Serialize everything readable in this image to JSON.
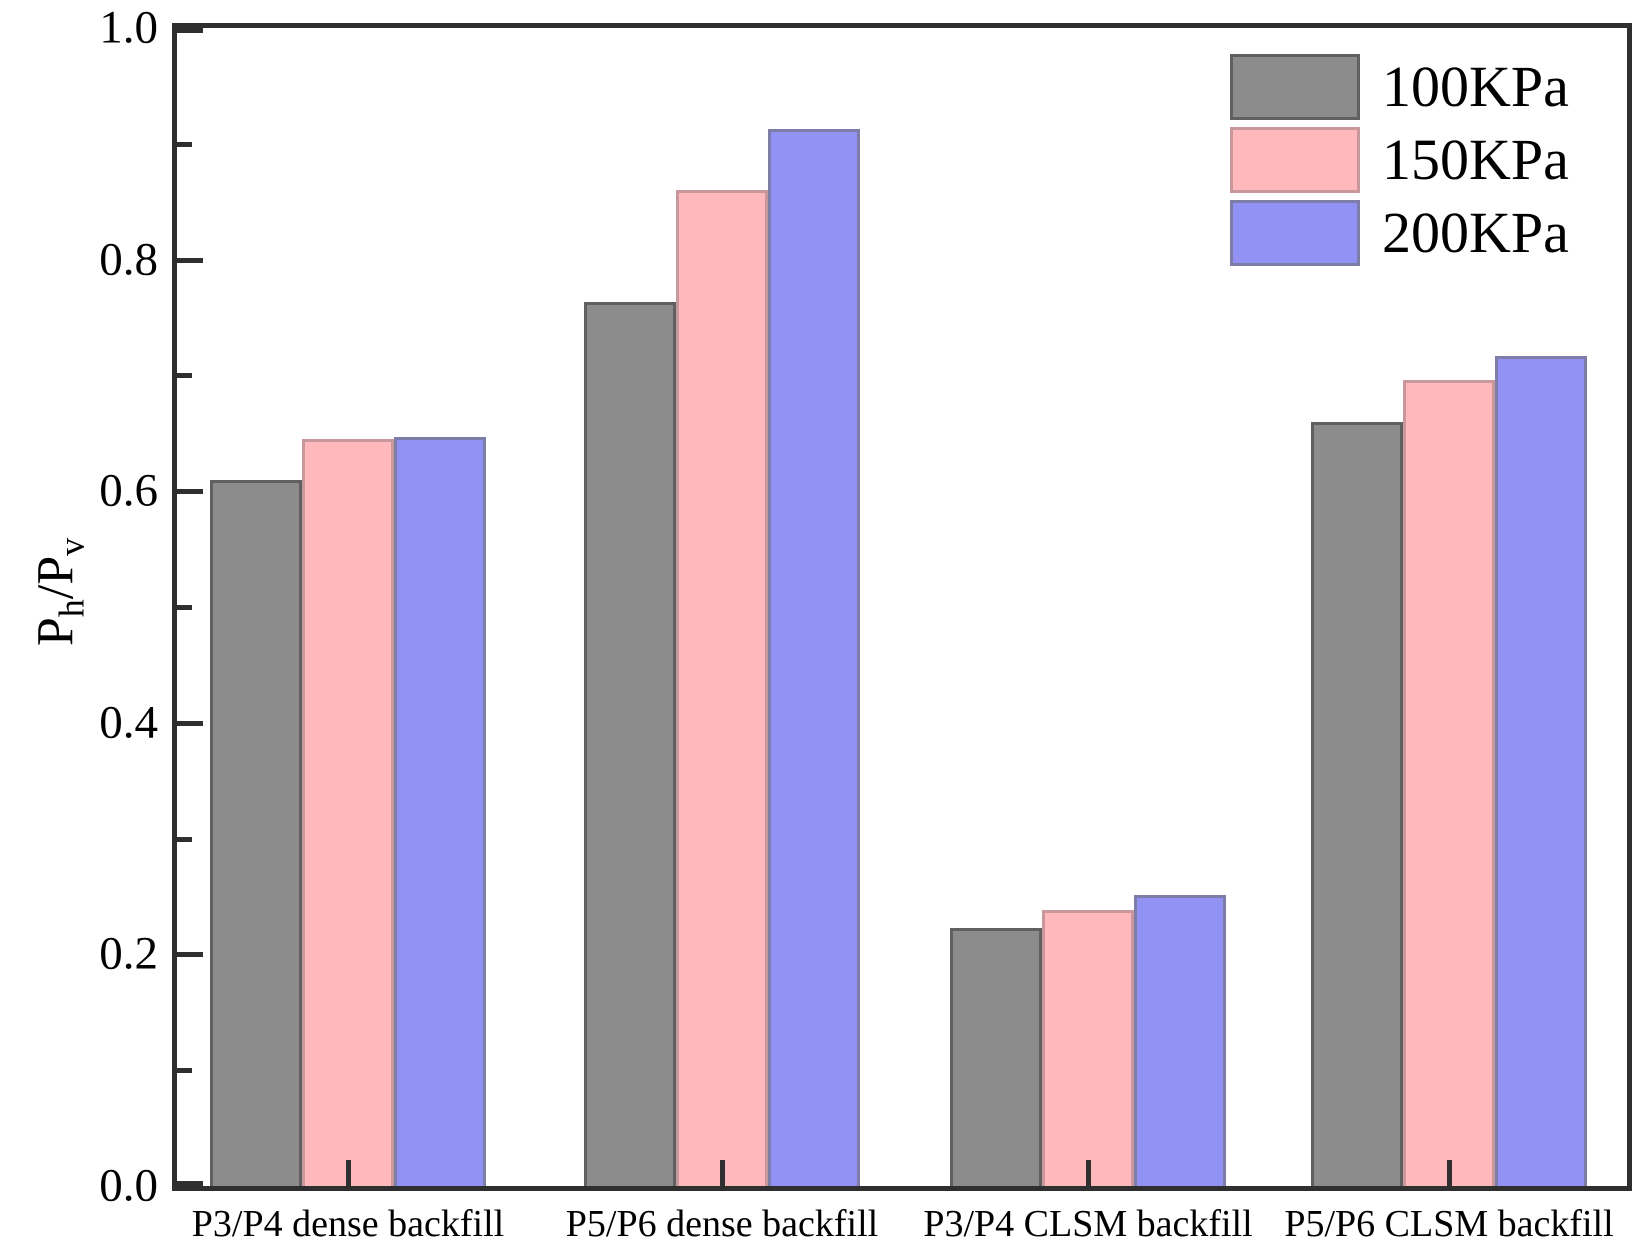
{
  "chart_data": {
    "type": "bar",
    "title": "",
    "ylabel": {
      "numerator": "P",
      "numerator_sub": "h",
      "separator": "/",
      "denominator": "P",
      "denominator_sub": "v"
    },
    "categories": [
      "P3/P4 dense backfill",
      "P5/P6 dense backfill",
      "P3/P4 CLSM backfill",
      "P5/P6 CLSM backfill"
    ],
    "series": [
      {
        "name": "100KPa",
        "color": "#8c8c8c",
        "edge_color": "#606060",
        "values": [
          0.61,
          0.763,
          0.223,
          0.66
        ]
      },
      {
        "name": "150KPa",
        "color": "#ffb9bc",
        "edge_color": "#c9989c",
        "values": [
          0.645,
          0.86,
          0.238,
          0.696
        ]
      },
      {
        "name": "200KPa",
        "color": "#9292f5",
        "edge_color": "#7d7da8",
        "values": [
          0.647,
          0.913,
          0.251,
          0.717
        ]
      }
    ],
    "ylim": [
      0,
      1
    ],
    "yticks": {
      "values": [
        0.0,
        0.2,
        0.4,
        0.6,
        0.8,
        1.0
      ],
      "labels": [
        "0.0",
        "0.2",
        "0.4",
        "0.6",
        "0.8",
        "1.0"
      ]
    },
    "yticks_minor": [
      0.1,
      0.3,
      0.5,
      0.7,
      0.9
    ],
    "legend_position": "top-right",
    "grid": false
  },
  "colors": {
    "axis": "#2f2f2f",
    "text": "#000000",
    "background": "#ffffff"
  }
}
